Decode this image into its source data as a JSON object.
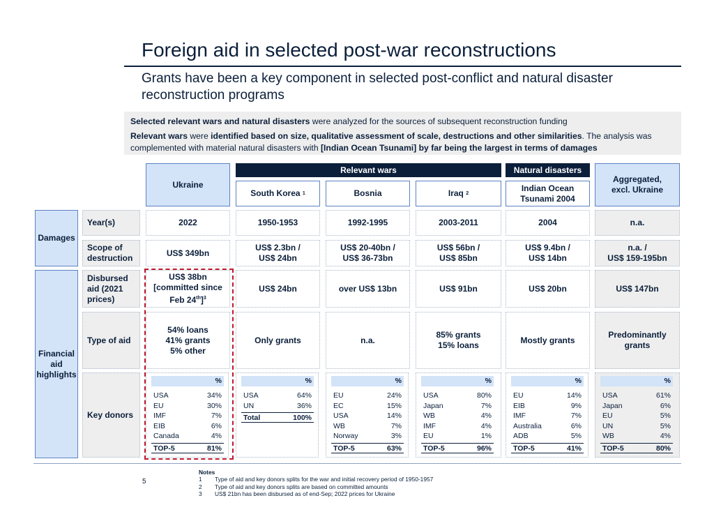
{
  "header": {
    "title": "Foreign aid in selected post-war reconstructions",
    "subtitle": "Grants have been a key component in selected post-conflict and natural disaster reconstruction programs"
  },
  "intro": {
    "line1_bold": "Selected relevant wars and natural disasters",
    "line1_rest": " were analyzed for the sources of subsequent reconstruction funding",
    "line2_bold1": "Relevant wars",
    "line2_mid1": " were ",
    "line2_bold2": "identified based on size, qualitative assessment of scale, destructions and other similarities",
    "line2_mid2": ". The analysis was complemented with material natural disasters with ",
    "line2_bold3": "[Indian Ocean Tsunami]  by far being the largest in terms of damages"
  },
  "groups": {
    "wars": "Relevant wars",
    "disasters": "Natural disasters"
  },
  "columns": {
    "ukraine": "Ukraine",
    "south_korea": "South Korea",
    "south_korea_sup": "1",
    "bosnia": "Bosnia",
    "iraq": "Iraq",
    "iraq_sup": "2",
    "tsunami": "Indian Ocean Tsunami 2004",
    "aggregated": "Aggregated, excl. Ukraine"
  },
  "sections": {
    "damages": "Damages",
    "financial": "Financial aid highlights"
  },
  "row_labels": {
    "years": "Year(s)",
    "scope": "Scope of destruction",
    "disbursed": "Disbursed aid (2021 prices)",
    "type": "Type of aid",
    "donors": "Key donors"
  },
  "years": [
    "2022",
    "1950-1953",
    "1992-1995",
    "2003-2011",
    "2004",
    "n.a."
  ],
  "scope": [
    [
      "US$ 349bn",
      ""
    ],
    [
      "US$ 2.3bn /",
      "US$ 24bn"
    ],
    [
      "US$ 20-40bn /",
      "US$ 36-73bn"
    ],
    [
      "US$ 56bn /",
      "US$ 85bn"
    ],
    [
      "US$ 9.4bn /",
      "US$ 14bn"
    ],
    [
      "n.a. /",
      "US$ 159-195bn"
    ]
  ],
  "disbursed": {
    "ukraine_line1": "US$ 38bn",
    "ukraine_line2": "[committed since",
    "ukraine_line3a": "Feb 24",
    "ukraine_line3sup": "th",
    "ukraine_line3b": "]",
    "ukraine_line3note": "3",
    "others": [
      "US$ 24bn",
      "over US$ 13bn",
      "US$ 91bn",
      "US$ 20bn",
      "US$ 147bn"
    ]
  },
  "type_of_aid": [
    [
      "54% loans",
      "41% grants",
      "5% other"
    ],
    [
      "Only grants"
    ],
    [
      "n.a."
    ],
    [
      "85% grants",
      "15% loans"
    ],
    [
      "Mostly grants"
    ],
    [
      "Predominantly",
      "grants"
    ]
  ],
  "donors_pct_header": "%",
  "donors": [
    {
      "rows": [
        [
          "USA",
          "34%"
        ],
        [
          "EU",
          "30%"
        ],
        [
          "IMF",
          "7%"
        ],
        [
          "EIB",
          "6%"
        ],
        [
          "Canada",
          "4%"
        ]
      ],
      "total": [
        "TOP-5",
        "81%"
      ]
    },
    {
      "rows": [
        [
          "USA",
          "64%"
        ],
        [
          "UN",
          "36%"
        ]
      ],
      "total": [
        "Total",
        "100%"
      ]
    },
    {
      "rows": [
        [
          "EU",
          "24%"
        ],
        [
          "EC",
          "15%"
        ],
        [
          "USA",
          "14%"
        ],
        [
          "WB",
          "7%"
        ],
        [
          "Norway",
          "3%"
        ]
      ],
      "total": [
        "TOP-5",
        "63%"
      ]
    },
    {
      "rows": [
        [
          "USA",
          "80%"
        ],
        [
          "Japan",
          "7%"
        ],
        [
          "WB",
          "4%"
        ],
        [
          "IMF",
          "4%"
        ],
        [
          "EU",
          "1%"
        ]
      ],
      "total": [
        "TOP-5",
        "96%"
      ]
    },
    {
      "rows": [
        [
          "EU",
          "14%"
        ],
        [
          "EIB",
          "9%"
        ],
        [
          "IMF",
          "7%"
        ],
        [
          "Australia",
          "6%"
        ],
        [
          "ADB",
          "5%"
        ]
      ],
      "total": [
        "TOP-5",
        "41%"
      ]
    },
    {
      "rows": [
        [
          "USA",
          "61%"
        ],
        [
          "Japan",
          "6%"
        ],
        [
          "EU",
          "5%"
        ],
        [
          "UN",
          "5%"
        ],
        [
          "WB",
          "4%"
        ]
      ],
      "total": [
        "TOP-5",
        "80%"
      ]
    }
  ],
  "footer": {
    "page": "5",
    "notes_title": "Notes",
    "notes": [
      [
        "1",
        "Type of aid and key donors splits for the war and initial recovery period of 1950-1957"
      ],
      [
        "2",
        "Type of aid and key donors splits are based on committed amounts"
      ],
      [
        "3",
        "US$ 21bn has been disbursed as of end-Sep; 2022 prices for Ukraine"
      ]
    ]
  },
  "colors": {
    "navy": "#0b1f3a",
    "light_blue": "#d3e3f8",
    "border_blue": "#5b82c4",
    "highlight_red": "#c0182b",
    "grey": "#eeeeee"
  }
}
